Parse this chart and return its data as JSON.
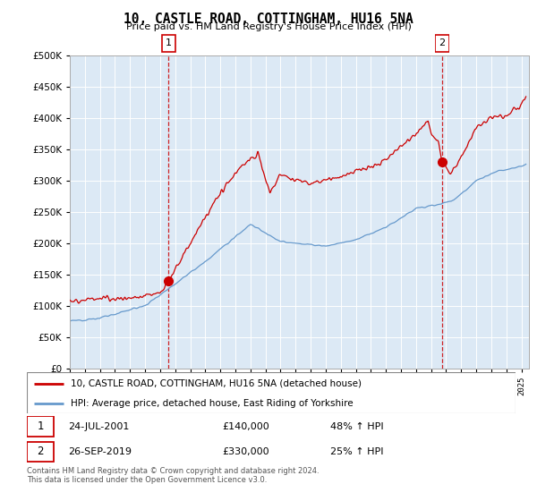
{
  "title": "10, CASTLE ROAD, COTTINGHAM, HU16 5NA",
  "subtitle": "Price paid vs. HM Land Registry's House Price Index (HPI)",
  "property_label": "10, CASTLE ROAD, COTTINGHAM, HU16 5NA (detached house)",
  "hpi_label": "HPI: Average price, detached house, East Riding of Yorkshire",
  "sale1_date": "24-JUL-2001",
  "sale1_price": 140000,
  "sale1_pct": "48% ↑ HPI",
  "sale1_year": 2001.56,
  "sale2_date": "26-SEP-2019",
  "sale2_price": 330000,
  "sale2_pct": "25% ↑ HPI",
  "sale2_year": 2019.73,
  "property_color": "#cc0000",
  "hpi_color": "#6699cc",
  "bg_color": "#dce9f5",
  "ylim": [
    0,
    500000
  ],
  "xlim_start": 1995.0,
  "xlim_end": 2025.5,
  "footer": "Contains HM Land Registry data © Crown copyright and database right 2024.\nThis data is licensed under the Open Government Licence v3.0."
}
